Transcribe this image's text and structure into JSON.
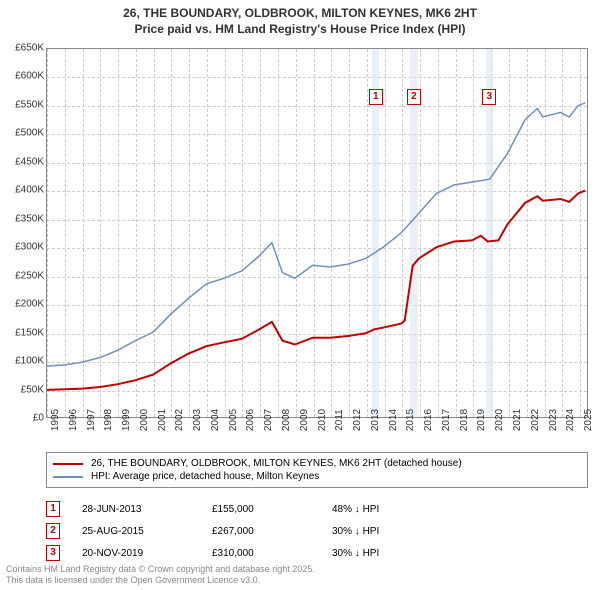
{
  "title_line1": "26, THE BOUNDARY, OLDBROOK, MILTON KEYNES, MK6 2HT",
  "title_line2": "Price paid vs. HM Land Registry's House Price Index (HPI)",
  "chart": {
    "type": "line",
    "xlim": [
      1995,
      2025.5
    ],
    "ylim": [
      0,
      650000
    ],
    "ytick_step": 50000,
    "yticks": [
      "£0",
      "£50K",
      "£100K",
      "£150K",
      "£200K",
      "£250K",
      "£300K",
      "£350K",
      "£400K",
      "£450K",
      "£500K",
      "£550K",
      "£600K",
      "£650K"
    ],
    "xticks": [
      1995,
      1996,
      1997,
      1998,
      1999,
      2000,
      2001,
      2002,
      2003,
      2004,
      2005,
      2006,
      2007,
      2008,
      2009,
      2010,
      2011,
      2012,
      2013,
      2014,
      2015,
      2016,
      2017,
      2018,
      2019,
      2020,
      2021,
      2022,
      2023,
      2024,
      2025
    ],
    "grid_color": "#cccccc",
    "background_color": "#ffffff",
    "band_color": "#dce6f2",
    "series": [
      {
        "name": "price_paid",
        "color": "#c00000",
        "width": 2,
        "legend": "26, THE BOUNDARY, OLDBROOK, MILTON KEYNES, MK6 2HT (detached house)",
        "points": [
          [
            1995,
            48000
          ],
          [
            1996,
            49000
          ],
          [
            1997,
            50000
          ],
          [
            1998,
            53000
          ],
          [
            1999,
            58000
          ],
          [
            2000,
            65000
          ],
          [
            2001,
            75000
          ],
          [
            2002,
            95000
          ],
          [
            2003,
            112000
          ],
          [
            2004,
            125000
          ],
          [
            2005,
            132000
          ],
          [
            2006,
            138000
          ],
          [
            2007,
            155000
          ],
          [
            2007.7,
            168000
          ],
          [
            2008.3,
            135000
          ],
          [
            2009,
            128000
          ],
          [
            2010,
            140000
          ],
          [
            2011,
            140000
          ],
          [
            2012,
            143000
          ],
          [
            2013,
            148000
          ],
          [
            2013.49,
            155000
          ],
          [
            2014,
            158000
          ],
          [
            2015,
            165000
          ],
          [
            2015.2,
            170000
          ],
          [
            2015.65,
            267000
          ],
          [
            2016,
            280000
          ],
          [
            2017,
            300000
          ],
          [
            2018,
            310000
          ],
          [
            2019,
            312000
          ],
          [
            2019.5,
            320000
          ],
          [
            2019.89,
            310000
          ],
          [
            2020.5,
            312000
          ],
          [
            2021,
            340000
          ],
          [
            2022,
            378000
          ],
          [
            2022.7,
            390000
          ],
          [
            2023,
            382000
          ],
          [
            2024,
            385000
          ],
          [
            2024.5,
            380000
          ],
          [
            2025,
            395000
          ],
          [
            2025.4,
            400000
          ]
        ]
      },
      {
        "name": "hpi",
        "color": "#6f8fbf",
        "width": 1.5,
        "legend": "HPI: Average price, detached house, Milton Keynes",
        "points": [
          [
            1995,
            90000
          ],
          [
            1996,
            92000
          ],
          [
            1997,
            97000
          ],
          [
            1998,
            105000
          ],
          [
            1999,
            118000
          ],
          [
            2000,
            135000
          ],
          [
            2001,
            150000
          ],
          [
            2002,
            182000
          ],
          [
            2003,
            210000
          ],
          [
            2004,
            235000
          ],
          [
            2005,
            245000
          ],
          [
            2006,
            258000
          ],
          [
            2007,
            285000
          ],
          [
            2007.7,
            308000
          ],
          [
            2008.3,
            255000
          ],
          [
            2009,
            245000
          ],
          [
            2010,
            268000
          ],
          [
            2011,
            265000
          ],
          [
            2012,
            270000
          ],
          [
            2013,
            280000
          ],
          [
            2014,
            300000
          ],
          [
            2015,
            325000
          ],
          [
            2016,
            360000
          ],
          [
            2017,
            395000
          ],
          [
            2018,
            410000
          ],
          [
            2019,
            415000
          ],
          [
            2020,
            420000
          ],
          [
            2021,
            465000
          ],
          [
            2022,
            525000
          ],
          [
            2022.7,
            545000
          ],
          [
            2023,
            530000
          ],
          [
            2024,
            538000
          ],
          [
            2024.5,
            530000
          ],
          [
            2025,
            550000
          ],
          [
            2025.4,
            555000
          ]
        ]
      }
    ],
    "marker_bands": [
      {
        "from": 2013.3,
        "to": 2013.7
      },
      {
        "from": 2015.45,
        "to": 2015.85
      },
      {
        "from": 2019.7,
        "to": 2020.1
      }
    ],
    "markers": [
      {
        "label": "1",
        "x": 2013.5,
        "y": 580000
      },
      {
        "label": "2",
        "x": 2015.65,
        "y": 580000
      },
      {
        "label": "3",
        "x": 2019.89,
        "y": 580000
      }
    ]
  },
  "legend": {
    "rows": [
      {
        "color": "#c00000",
        "label": "26, THE BOUNDARY, OLDBROOK, MILTON KEYNES, MK6 2HT (detached house)"
      },
      {
        "color": "#6f8fbf",
        "label": "HPI: Average price, detached house, Milton Keynes"
      }
    ]
  },
  "sales": [
    {
      "num": "1",
      "date": "28-JUN-2013",
      "price": "£155,000",
      "pct": "48% ↓ HPI"
    },
    {
      "num": "2",
      "date": "25-AUG-2015",
      "price": "£267,000",
      "pct": "30% ↓ HPI"
    },
    {
      "num": "3",
      "date": "20-NOV-2019",
      "price": "£310,000",
      "pct": "30% ↓ HPI"
    }
  ],
  "attribution_line1": "Contains HM Land Registry data © Crown copyright and database right 2025.",
  "attribution_line2": "This data is licensed under the Open Government Licence v3.0."
}
